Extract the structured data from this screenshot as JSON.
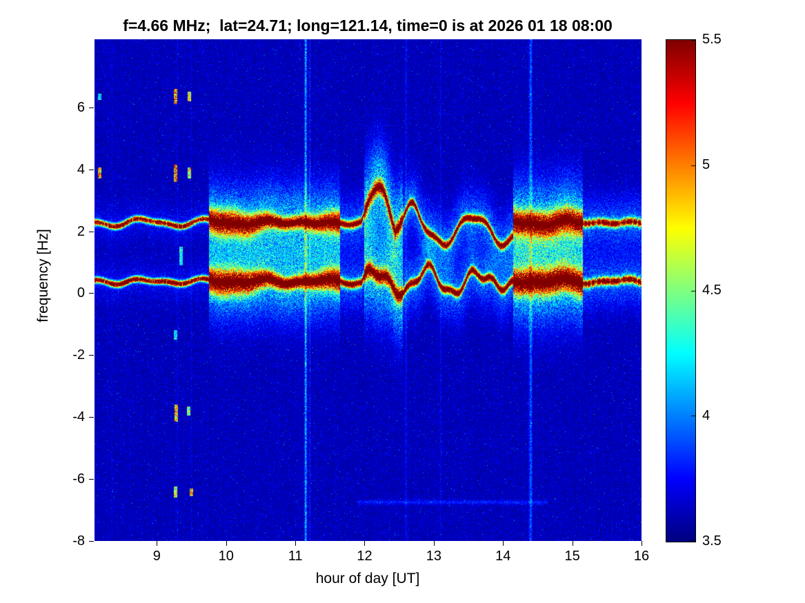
{
  "figure": {
    "background": "#ffffff"
  },
  "chart_data": {
    "type": "heatmap",
    "subtype": "doppler-spectrogram",
    "title": "f=4.66 MHz;  lat=24.71; long=121.14, time=0 is at 2026 01 18 08:00",
    "xlabel": "hour of day [UT]",
    "ylabel": "frequency [Hz]",
    "x_range": [
      8.1,
      16
    ],
    "y_range": [
      -8,
      8.2
    ],
    "x_ticks": [
      9,
      10,
      11,
      12,
      13,
      14,
      15,
      16
    ],
    "y_ticks": [
      6,
      4,
      2,
      0,
      -2,
      -4,
      -6,
      -8
    ],
    "grid": false,
    "colorbar": {
      "min": 3.5,
      "max": 5.5,
      "ticks": [
        5.5,
        5,
        4.5,
        4,
        3.5
      ],
      "colormap": "jet",
      "position": "right"
    },
    "features": {
      "background_level": 3.55,
      "doppler_bands": [
        {
          "name": "lower-trace",
          "center_hz": 0.4,
          "peak_value": 5.5
        },
        {
          "name": "upper-trace",
          "center_hz": 2.3,
          "peak_value": 5.4
        }
      ],
      "band_broadening_ut": [
        [
          9.8,
          11.6
        ],
        [
          14.2,
          15.1
        ]
      ],
      "plume_ut": 12.2,
      "vertical_streaks_ut": [
        11.15,
        14.4,
        12.6,
        13.1
      ],
      "interference_dashes_ut": [
        8.17,
        9.27,
        9.47
      ],
      "faint_horizontal_line_hz": -6.75
    }
  }
}
